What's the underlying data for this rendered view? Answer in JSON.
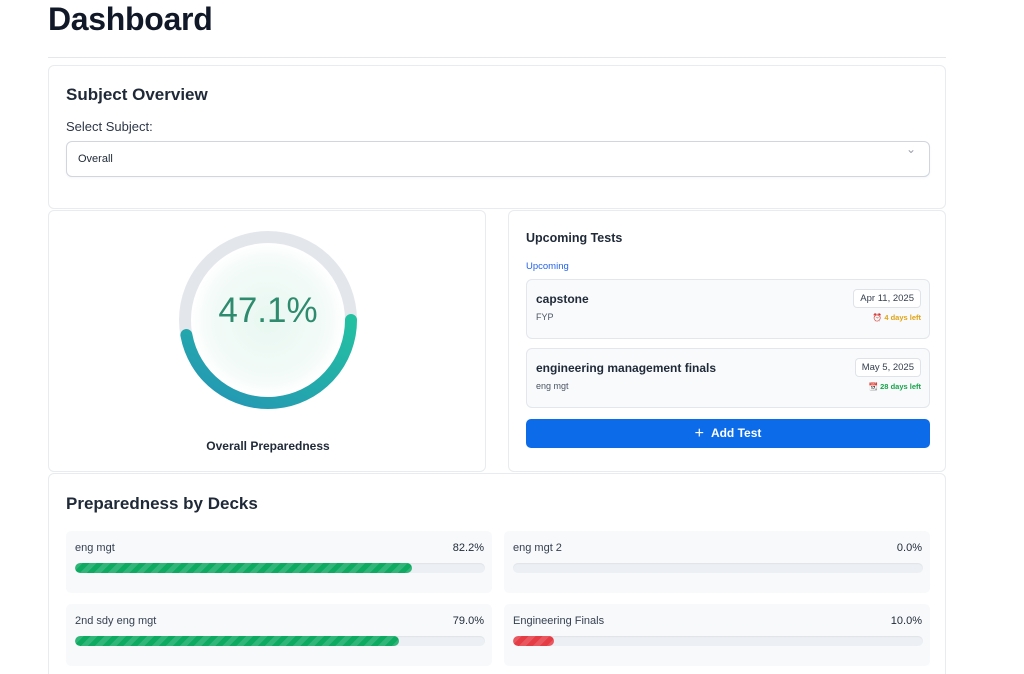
{
  "page": {
    "title": "Dashboard"
  },
  "subject_overview": {
    "heading": "Subject Overview",
    "select_label": "Select Subject:",
    "selected": "Overall",
    "chevron_icon": "chevron-down-icon"
  },
  "preparedness": {
    "value": 47.1,
    "display": "47.1%",
    "label": "Overall Preparedness",
    "colors": {
      "track": "#e3e7ec",
      "start": "#2493b5",
      "end": "#24c0a2",
      "text": "#2e8b6e"
    }
  },
  "upcoming_tests": {
    "heading": "Upcoming Tests",
    "filter": "Upcoming",
    "items": [
      {
        "name": "capstone",
        "subject": "FYP",
        "date": "Apr 11, 2025",
        "icon": "alarm-clock-icon",
        "icon_glyph": "⏰",
        "days_left": "4 days left",
        "status": "warn"
      },
      {
        "name": "engineering management finals",
        "subject": "eng mgt",
        "date": "May 5, 2025",
        "icon": "calendar-icon",
        "icon_glyph": "📆",
        "days_left": "28 days left",
        "status": "ok"
      }
    ],
    "add_button": "Add Test",
    "add_icon": "plus-icon",
    "accent": "#0b6be8"
  },
  "decks": {
    "heading": "Preparedness by Decks",
    "items": [
      {
        "name": "eng mgt",
        "percent": "82.2%",
        "value": 82.2,
        "color": "green"
      },
      {
        "name": "eng mgt 2",
        "percent": "0.0%",
        "value": 0.0,
        "color": "green"
      },
      {
        "name": "2nd sdy eng mgt",
        "percent": "79.0%",
        "value": 79.0,
        "color": "green"
      },
      {
        "name": "Engineering Finals",
        "percent": "10.0%",
        "value": 10.0,
        "color": "red"
      }
    ]
  }
}
